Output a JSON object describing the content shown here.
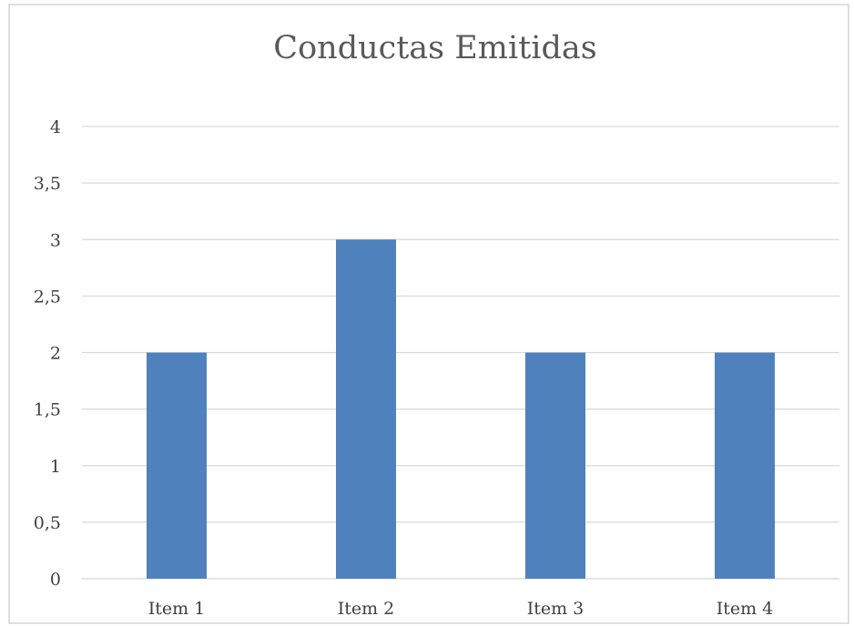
{
  "header_fragment": "",
  "chart_data": {
    "type": "bar",
    "title": "Conductas Emitidas",
    "categories": [
      "Item 1",
      "Item 2",
      "Item 3",
      "Item 4"
    ],
    "values": [
      2,
      3,
      2,
      2
    ],
    "ylim": [
      0,
      4
    ],
    "yticks": [
      "0",
      "0,5",
      "1",
      "1,5",
      "2",
      "2,5",
      "3",
      "3,5",
      "4"
    ],
    "ytick_values": [
      0,
      0.5,
      1,
      1.5,
      2,
      2.5,
      3,
      3.5,
      4
    ],
    "xlabel": "",
    "ylabel": "",
    "grid": true,
    "legend": "none",
    "colors": {
      "bar": "#4f81bd",
      "grid": "#d9d9d9",
      "frame": "#bfbfbf"
    }
  }
}
